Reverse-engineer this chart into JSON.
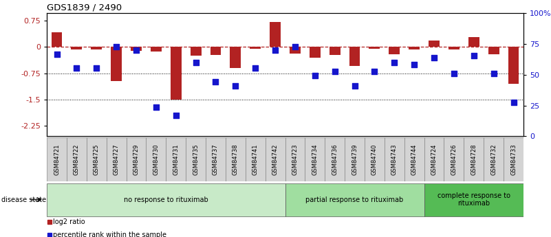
{
  "title": "GDS1839 / 2490",
  "samples": [
    "GSM84721",
    "GSM84722",
    "GSM84725",
    "GSM84727",
    "GSM84729",
    "GSM84730",
    "GSM84731",
    "GSM84735",
    "GSM84737",
    "GSM84738",
    "GSM84741",
    "GSM84742",
    "GSM84723",
    "GSM84734",
    "GSM84736",
    "GSM84739",
    "GSM84740",
    "GSM84743",
    "GSM84744",
    "GSM84724",
    "GSM84726",
    "GSM84728",
    "GSM84732",
    "GSM84733"
  ],
  "log2_ratio": [
    0.42,
    -0.08,
    -0.07,
    -0.97,
    -0.1,
    -0.12,
    -1.5,
    -0.25,
    -0.22,
    -0.6,
    -0.05,
    0.72,
    -0.18,
    -0.3,
    -0.22,
    -0.55,
    -0.05,
    -0.2,
    -0.08,
    0.18,
    -0.07,
    0.28,
    -0.2,
    -1.05
  ],
  "percentile_rank": [
    68,
    55,
    55,
    75,
    72,
    18,
    10,
    60,
    42,
    38,
    55,
    72,
    75,
    48,
    52,
    38,
    52,
    60,
    58,
    65,
    50,
    67,
    50,
    22
  ],
  "groups": [
    {
      "label": "no response to rituximab",
      "start": 0,
      "end": 12,
      "color": "#c8eac8"
    },
    {
      "label": "partial response to rituximab",
      "start": 12,
      "end": 19,
      "color": "#a0dea0"
    },
    {
      "label": "complete response to\nrituximab",
      "start": 19,
      "end": 24,
      "color": "#55bb55"
    }
  ],
  "bar_color": "#b22222",
  "dot_color": "#1515cc",
  "left_yticks": [
    0.75,
    0.0,
    -0.75,
    -1.5,
    -2.25
  ],
  "left_ylim": [
    -2.55,
    0.97
  ],
  "right_ytick_labels": [
    "100%",
    "75",
    "50",
    "25",
    "0"
  ],
  "right_yticks_pct": [
    100,
    75,
    50,
    25,
    0
  ],
  "legend_labels": [
    "log2 ratio",
    "percentile rank within the sample"
  ],
  "legend_colors": [
    "#b22222",
    "#1515cc"
  ],
  "disease_state_label": "disease state"
}
